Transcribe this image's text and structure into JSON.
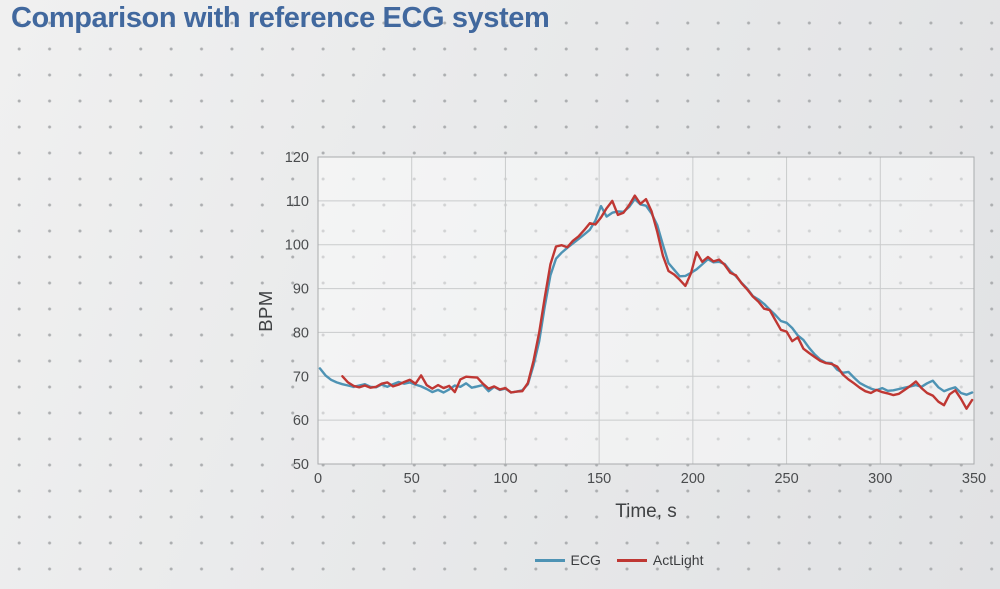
{
  "title": "Comparison with reference ECG system",
  "colors": {
    "title_text": "#41689e",
    "background": "#e8e9ea",
    "plot_fill": "rgba(255,255,255,0.45)",
    "plot_border": "#a9abad",
    "gridline": "#c9cbcc",
    "tick_text": "#4a4c4e",
    "ecg_line": "#4e93b4",
    "actlight_line": "#bf3733"
  },
  "chart_data": {
    "type": "line",
    "title": "",
    "xlabel": "Time, s",
    "ylabel": "BPM",
    "xlim": [
      0,
      350
    ],
    "ylim": [
      50,
      120
    ],
    "x_ticks": [
      0,
      50,
      100,
      150,
      200,
      250,
      300,
      350
    ],
    "y_ticks": [
      50,
      60,
      70,
      80,
      90,
      100,
      110,
      120
    ],
    "grid": true,
    "legend_position": "bottom",
    "series": [
      {
        "name": "ECG",
        "color": "#4e93b4",
        "x_start": 1,
        "x_step": 3,
        "values": [
          71.8,
          70.2,
          69.2,
          68.6,
          68.2,
          67.9,
          67.6,
          67.9,
          68.2,
          67.6,
          67.5,
          68.1,
          67.6,
          68.2,
          68.7,
          68.3,
          68.6,
          68.1,
          67.7,
          67.1,
          66.4,
          66.9,
          66.3,
          67.0,
          67.9,
          67.6,
          68.4,
          67.4,
          67.7,
          68.0,
          66.6,
          67.6,
          66.9,
          67.2,
          66.3,
          66.5,
          66.8,
          68.2,
          72.5,
          78.0,
          86.0,
          93.0,
          96.8,
          98.2,
          99.3,
          100.3,
          101.3,
          102.3,
          103.4,
          105.5,
          108.8,
          106.4,
          107.3,
          107.6,
          107.5,
          108.6,
          110.4,
          109.2,
          108.9,
          107.1,
          104.5,
          100.0,
          95.8,
          94.3,
          92.8,
          92.9,
          93.6,
          94.4,
          95.5,
          96.7,
          96.0,
          96.1,
          95.6,
          94.0,
          92.8,
          91.3,
          90.0,
          88.3,
          87.5,
          86.5,
          85.2,
          84.0,
          82.6,
          82.2,
          81.0,
          79.3,
          78.3,
          76.5,
          75.0,
          73.8,
          73.1,
          73.0,
          71.5,
          70.8,
          71.0,
          69.7,
          68.5,
          67.8,
          67.2,
          66.8,
          67.3,
          66.7,
          66.8,
          67.1,
          67.4,
          67.7,
          68.0,
          67.6,
          68.4,
          69.0,
          67.5,
          66.6,
          67.1,
          67.5,
          66.2,
          65.8,
          66.3
        ]
      },
      {
        "name": "ActLight",
        "color": "#bf3733",
        "x_start": 13,
        "x_step": 3,
        "values": [
          70.0,
          68.6,
          67.8,
          67.5,
          67.9,
          67.4,
          67.6,
          68.3,
          68.6,
          67.7,
          68.1,
          68.7,
          69.2,
          68.3,
          70.2,
          68.0,
          67.2,
          68.0,
          67.3,
          67.8,
          66.4,
          69.3,
          69.9,
          69.8,
          69.7,
          68.3,
          67.2,
          67.7,
          67.0,
          67.3,
          66.3,
          66.5,
          66.6,
          68.5,
          73.5,
          80.0,
          88.0,
          95.5,
          99.6,
          99.9,
          99.4,
          100.9,
          101.9,
          103.3,
          104.9,
          104.6,
          106.2,
          108.3,
          110.0,
          106.8,
          107.3,
          109.0,
          111.2,
          109.3,
          110.4,
          107.6,
          103.0,
          97.5,
          94.0,
          93.2,
          92.0,
          90.6,
          93.5,
          98.3,
          96.1,
          97.2,
          96.2,
          96.6,
          95.4,
          93.6,
          93.0,
          91.2,
          89.8,
          88.2,
          87.0,
          85.4,
          85.1,
          82.8,
          80.6,
          80.2,
          78.0,
          78.9,
          76.3,
          75.3,
          74.4,
          73.5,
          73.0,
          72.8,
          72.2,
          70.4,
          69.3,
          68.4,
          67.4,
          66.6,
          66.2,
          66.9,
          66.4,
          66.1,
          65.7,
          66.0,
          66.9,
          67.8,
          68.8,
          67.3,
          66.2,
          65.6,
          64.2,
          63.4,
          65.9,
          66.8,
          64.9,
          62.6,
          64.6
        ]
      }
    ]
  }
}
